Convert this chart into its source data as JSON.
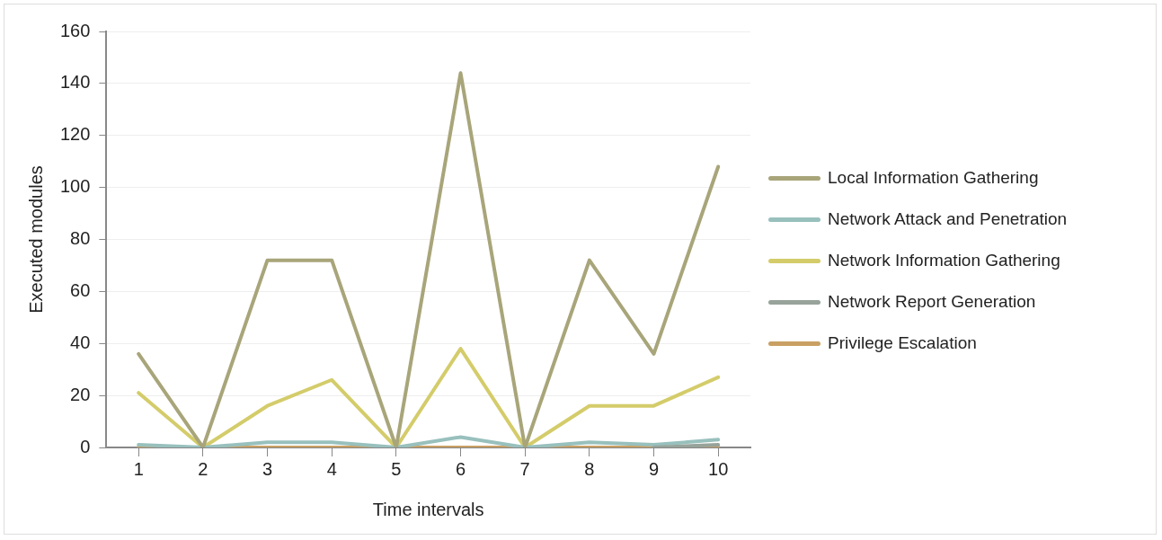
{
  "chart_data": {
    "type": "line",
    "xlabel": "Time intervals",
    "ylabel": "Executed modules",
    "categories": [
      "1",
      "2",
      "3",
      "4",
      "5",
      "6",
      "7",
      "8",
      "9",
      "10"
    ],
    "series": [
      {
        "name": "Local Information Gathering",
        "color": "#a8a57a",
        "values": [
          36,
          0,
          72,
          72,
          0,
          144,
          0,
          72,
          36,
          108
        ]
      },
      {
        "name": "Network Attack and Penetration",
        "color": "#98c0bd",
        "values": [
          1,
          0,
          2,
          2,
          0,
          4,
          0,
          2,
          1,
          3
        ]
      },
      {
        "name": "Network Information Gathering",
        "color": "#d4cc6a",
        "values": [
          21,
          0,
          16,
          26,
          0,
          38,
          0,
          16,
          16,
          27
        ]
      },
      {
        "name": "Network Report Generation",
        "color": "#97a39b",
        "values": [
          null,
          null,
          null,
          null,
          null,
          null,
          null,
          null,
          0,
          1
        ]
      },
      {
        "name": "Privilege Escalation",
        "color": "#c9a064",
        "values": [
          0,
          0,
          0,
          0,
          0,
          0,
          0,
          0,
          0,
          0
        ]
      }
    ],
    "ylim": [
      0,
      160
    ],
    "yticks": [
      0,
      20,
      40,
      60,
      80,
      100,
      120,
      140,
      160
    ],
    "grid": "y",
    "legend": "right",
    "marker": "none",
    "line_style": "solid"
  }
}
